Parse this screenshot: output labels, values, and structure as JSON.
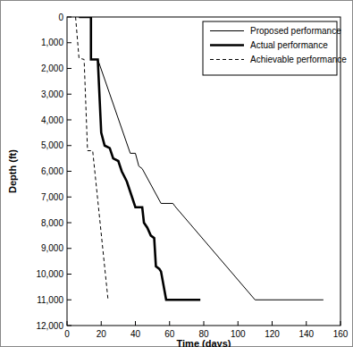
{
  "chart_data": {
    "type": "line",
    "x_label": "Time (days)",
    "y_label": "Depth (ft)",
    "xlim": [
      0,
      160
    ],
    "xticks": [
      0,
      20,
      40,
      60,
      80,
      100,
      120,
      140,
      160
    ],
    "ylim": [
      12000,
      0
    ],
    "yticks": [
      0,
      {
        "value": 1000,
        "label": "1,000"
      },
      {
        "value": 2000,
        "label": "2,000"
      },
      {
        "value": 3000,
        "label": "3,000"
      },
      {
        "value": 4000,
        "label": "4,000"
      },
      {
        "value": 5000,
        "label": "5,000"
      },
      {
        "value": 6000,
        "label": "6,000"
      },
      {
        "value": 7000,
        "label": "7,000"
      },
      {
        "value": 8000,
        "label": "8,000"
      },
      {
        "value": 9000,
        "label": "9,000"
      },
      {
        "value": 10000,
        "label": "10,000"
      },
      {
        "value": 11000,
        "label": "11,000"
      },
      {
        "value": 12000,
        "label": "12,000"
      }
    ],
    "legend": "upper right",
    "grid": false,
    "series": [
      {
        "name": "Proposed performance",
        "color": "#000000",
        "line_style": "solid",
        "x": [
          7,
          14,
          14,
          18,
          37,
          40,
          42,
          44,
          55,
          62,
          63,
          110,
          150
        ],
        "values": [
          0,
          0,
          1650,
          1650,
          5300,
          5300,
          5800,
          5900,
          7250,
          7250,
          7350,
          11000,
          11000
        ]
      },
      {
        "name": "Actual performance",
        "color": "#000000",
        "line_style": "bold",
        "x": [
          7,
          14,
          14,
          18,
          20,
          22,
          25,
          27,
          30,
          32,
          35,
          38,
          40,
          44,
          45,
          47,
          49,
          51,
          52,
          54,
          55,
          58,
          60,
          78
        ],
        "values": [
          0,
          0,
          1650,
          1650,
          4500,
          5000,
          5100,
          5500,
          5600,
          6000,
          6400,
          7000,
          7400,
          7400,
          8000,
          8200,
          8500,
          8600,
          9700,
          9800,
          9900,
          11000,
          11000,
          11000
        ]
      },
      {
        "name": "Achievable performance",
        "color": "#000000",
        "line_style": "dashed",
        "x": [
          5,
          7,
          10,
          12,
          15,
          24
        ],
        "values": [
          0,
          1600,
          1650,
          5200,
          5200,
          11000
        ]
      }
    ]
  }
}
